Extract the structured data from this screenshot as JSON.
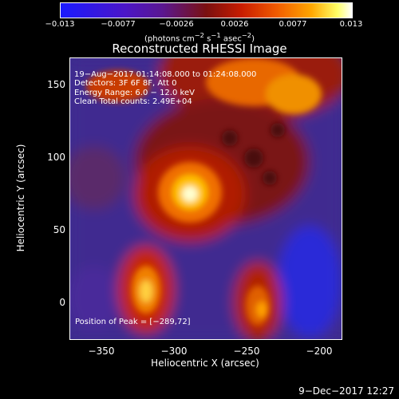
{
  "colorbar": {
    "ticks": [
      "−0.013",
      "−0.0077",
      "−0.0026",
      "0.0026",
      "0.0077",
      "0.013"
    ],
    "units_prefix": "(photons cm",
    "units_exp1": "−2",
    "units_s": " s",
    "units_exp2": "−1",
    "units_asec": " asec",
    "units_exp3": "−2",
    "units_suffix": ")"
  },
  "title": "Reconstructed RHESSI Image",
  "overlay": {
    "time": "19−Aug−2017 01:14:08.000 to 01:24:08.000",
    "detectors": "Detectors: 3F 6F 8F, Att 0",
    "energy": "Energy Range: 6.0 − 12.0 keV",
    "clean": "Clean     Total counts: 2.49E+04",
    "peak": "Position of Peak = [−289,72]"
  },
  "axes": {
    "ylabel": "Heliocentric Y (arcsec)",
    "xlabel": "Heliocentric X (arcsec)",
    "yticks": [
      "150",
      "100",
      "50",
      "0"
    ],
    "xticks": [
      "−350",
      "−300",
      "−250",
      "−200"
    ]
  },
  "footer": "9−Dec−2017 12:27",
  "colors": {
    "background": "#000000",
    "low": "#1a1aff",
    "mid": "#7a1010",
    "high": "#ffffff"
  }
}
